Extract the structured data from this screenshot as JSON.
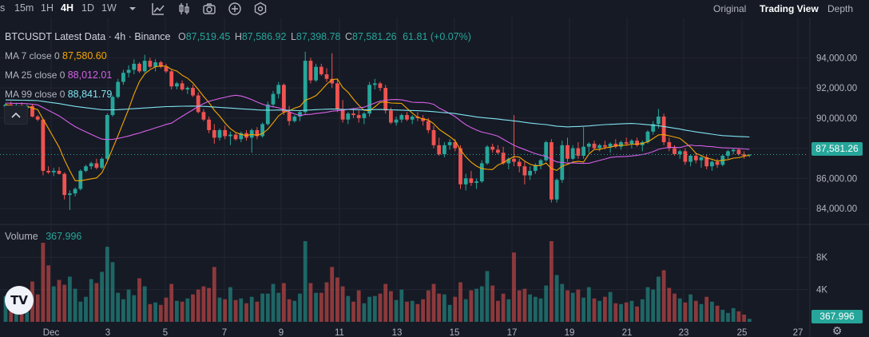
{
  "toolbar": {
    "partial_label": "s",
    "intervals": [
      {
        "label": "15m",
        "active": false
      },
      {
        "label": "1H",
        "active": false
      },
      {
        "label": "4H",
        "active": true
      },
      {
        "label": "1D",
        "active": false
      },
      {
        "label": "1W",
        "active": false
      }
    ],
    "views": [
      {
        "label": "Original",
        "active": false
      },
      {
        "label": "Trading View",
        "active": true
      },
      {
        "label": "Depth",
        "active": false
      }
    ],
    "icons": [
      "chevron-down-icon",
      "indicator-chart-icon",
      "candle-style-icon",
      "camera-icon",
      "add-circle-icon",
      "settings-hex-icon"
    ]
  },
  "legend": {
    "symbol_line": "BTCUSDT Latest Data · 4h · Binance",
    "o_label": "O",
    "o_value": "87,519.45",
    "h_label": "H",
    "h_value": "87,586.92",
    "l_label": "L",
    "l_value": "87,398.78",
    "c_label": "C",
    "c_value": "87,581.26",
    "change": "61.81 (+0.07%)"
  },
  "ma": [
    {
      "label": "MA 7 close 0",
      "value": "87,580.60",
      "color": "#f7a600"
    },
    {
      "label": "MA 25 close 0",
      "value": "88,012.01",
      "color": "#d660e6"
    },
    {
      "label": "MA 99 close 0",
      "value": "88,841.79",
      "color": "#7fe3ef"
    }
  ],
  "volume": {
    "label": "Volume",
    "value": "367.996"
  },
  "price_axis": {
    "labels": [
      "94,000.00",
      "92,000.00",
      "90,000.00",
      "88,000.00",
      "86,000.00",
      "84,000.00"
    ],
    "current_price": "87,581.26",
    "current_volume": "367.996",
    "volume_labels": [
      "8K",
      "4K"
    ]
  },
  "time_axis": [
    "Dec",
    "3",
    "5",
    "7",
    "9",
    "11",
    "13",
    "15",
    "17",
    "19",
    "21",
    "23",
    "25",
    "27"
  ],
  "colors": {
    "up": "#26a69a",
    "down": "#ef5350",
    "background": "#161a25",
    "grid": "#232632"
  },
  "collapse_icon": "chevron-up-icon",
  "logo": "TV",
  "chart_data": {
    "type": "candlestick",
    "symbol": "BTCUSDT",
    "interval": "4h",
    "price_range": [
      83000,
      95500
    ],
    "volume_range": [
      0,
      10000
    ],
    "candles": [
      [
        90750,
        91000,
        90550,
        90900,
        3200
      ],
      [
        90900,
        91100,
        90550,
        90700,
        2500
      ],
      [
        90700,
        90950,
        90450,
        90850,
        2000
      ],
      [
        90850,
        91050,
        90700,
        90650,
        2200
      ],
      [
        90650,
        90900,
        90400,
        90800,
        3500
      ],
      [
        90800,
        90950,
        90050,
        90100,
        5000
      ],
      [
        90100,
        90200,
        89800,
        89900,
        3400
      ],
      [
        89900,
        89950,
        86200,
        86500,
        9800
      ],
      [
        86500,
        86800,
        86300,
        86400,
        7000
      ],
      [
        86400,
        86700,
        86150,
        86500,
        4400
      ],
      [
        86500,
        86750,
        86250,
        86300,
        5200
      ],
      [
        86300,
        86400,
        84600,
        84900,
        4600
      ],
      [
        84900,
        85200,
        83900,
        85000,
        5600
      ],
      [
        85000,
        85400,
        84800,
        85300,
        4100
      ],
      [
        85300,
        86600,
        85200,
        86500,
        2500
      ],
      [
        86500,
        86900,
        86400,
        86800,
        3100
      ],
      [
        86800,
        87100,
        86600,
        87000,
        5300
      ],
      [
        87000,
        87300,
        86600,
        86700,
        4800
      ],
      [
        86700,
        87400,
        86600,
        87300,
        6200
      ],
      [
        87300,
        90300,
        87200,
        90200,
        9300
      ],
      [
        90200,
        91500,
        90100,
        91400,
        7400
      ],
      [
        91400,
        92600,
        91300,
        92400,
        3600
      ],
      [
        92400,
        93200,
        92200,
        93000,
        2800
      ],
      [
        93000,
        93500,
        92700,
        93200,
        4000
      ],
      [
        93200,
        93900,
        92900,
        93600,
        3300
      ],
      [
        93600,
        93700,
        93000,
        93100,
        5400
      ],
      [
        93100,
        94200,
        93000,
        93800,
        4400
      ],
      [
        93800,
        94000,
        93300,
        93400,
        2200
      ],
      [
        93400,
        93900,
        93100,
        93700,
        2400
      ],
      [
        93700,
        93800,
        93300,
        93400,
        2100
      ],
      [
        93400,
        93600,
        93000,
        93100,
        3000
      ],
      [
        93100,
        93200,
        91900,
        92100,
        4700
      ],
      [
        92100,
        92400,
        91900,
        92300,
        2600
      ],
      [
        92300,
        92500,
        91800,
        91900,
        2500
      ],
      [
        91900,
        92100,
        91600,
        92000,
        2900
      ],
      [
        92000,
        92200,
        91400,
        91500,
        3400
      ],
      [
        91500,
        91700,
        90300,
        90400,
        4000
      ],
      [
        90400,
        90600,
        89800,
        89900,
        4400
      ],
      [
        89900,
        90100,
        89000,
        89200,
        4200
      ],
      [
        89200,
        89600,
        88300,
        88700,
        6800
      ],
      [
        88700,
        89300,
        88500,
        89200,
        3000
      ],
      [
        89200,
        89500,
        88600,
        88800,
        2800
      ],
      [
        88800,
        89100,
        88200,
        88900,
        4300
      ],
      [
        88900,
        89000,
        88500,
        88600,
        2700
      ],
      [
        88600,
        89100,
        88400,
        89000,
        2900
      ],
      [
        89000,
        89200,
        88500,
        88700,
        2300
      ],
      [
        88700,
        89300,
        87700,
        89200,
        3100
      ],
      [
        89200,
        89400,
        88600,
        88800,
        2500
      ],
      [
        88800,
        89700,
        88700,
        89600,
        3500
      ],
      [
        89600,
        91100,
        89500,
        90900,
        3500
      ],
      [
        90900,
        91800,
        90700,
        91600,
        4700
      ],
      [
        91600,
        92400,
        91300,
        92200,
        3600
      ],
      [
        92200,
        92300,
        90200,
        90400,
        4800
      ],
      [
        90400,
        90800,
        89500,
        89800,
        2800
      ],
      [
        89800,
        90200,
        89700,
        90100,
        2600
      ],
      [
        90100,
        90500,
        89800,
        90400,
        3500
      ],
      [
        90400,
        94400,
        90200,
        93800,
        10000
      ],
      [
        93800,
        94000,
        92300,
        92500,
        4800
      ],
      [
        92500,
        93600,
        92400,
        93400,
        3600
      ],
      [
        93400,
        93600,
        92800,
        92900,
        3600
      ],
      [
        92900,
        93300,
        92400,
        92600,
        4900
      ],
      [
        92600,
        94300,
        92000,
        92300,
        6800
      ],
      [
        92300,
        92600,
        90400,
        90600,
        5500
      ],
      [
        90600,
        91200,
        89700,
        89900,
        4400
      ],
      [
        89900,
        90400,
        89600,
        90300,
        3200
      ],
      [
        90300,
        90600,
        90000,
        90200,
        2500
      ],
      [
        90200,
        90500,
        89700,
        90000,
        3900
      ],
      [
        90000,
        90400,
        89600,
        90300,
        2300
      ],
      [
        90300,
        92400,
        90100,
        92200,
        3100
      ],
      [
        92200,
        92600,
        91900,
        92300,
        3200
      ],
      [
        92300,
        92400,
        91800,
        92000,
        3500
      ],
      [
        92000,
        92200,
        90300,
        90500,
        4700
      ],
      [
        90500,
        90700,
        89600,
        89700,
        3800
      ],
      [
        89700,
        90100,
        89500,
        89900,
        2700
      ],
      [
        89900,
        90300,
        89700,
        90200,
        4000
      ],
      [
        90200,
        90400,
        89800,
        89900,
        2500
      ],
      [
        89900,
        90200,
        89600,
        90100,
        2600
      ],
      [
        90100,
        90400,
        89800,
        90000,
        2200
      ],
      [
        90000,
        90200,
        89500,
        89800,
        2800
      ],
      [
        89800,
        90000,
        89000,
        89200,
        3900
      ],
      [
        89200,
        89500,
        88000,
        88200,
        4700
      ],
      [
        88200,
        88700,
        87500,
        87600,
        3500
      ],
      [
        87600,
        88400,
        87400,
        88200,
        3400
      ],
      [
        88200,
        88600,
        87900,
        88400,
        2100
      ],
      [
        88400,
        88600,
        87800,
        88000,
        3100
      ],
      [
        88000,
        88200,
        85300,
        85600,
        4900
      ],
      [
        85600,
        86300,
        85200,
        86000,
        2800
      ],
      [
        86000,
        86500,
        85500,
        85700,
        3900
      ],
      [
        85700,
        86000,
        85300,
        85800,
        4100
      ],
      [
        85800,
        87200,
        85700,
        87000,
        4400
      ],
      [
        87000,
        88200,
        86900,
        88100,
        6300
      ],
      [
        88100,
        88300,
        87700,
        87900,
        4500
      ],
      [
        87900,
        88200,
        87600,
        87700,
        2600
      ],
      [
        87700,
        88100,
        86900,
        87000,
        3500
      ],
      [
        87000,
        87400,
        86600,
        87300,
        2800
      ],
      [
        87300,
        90200,
        86800,
        87100,
        8600
      ],
      [
        87100,
        87300,
        86400,
        86800,
        3900
      ],
      [
        86800,
        87100,
        85600,
        86200,
        4100
      ],
      [
        86200,
        86800,
        85900,
        86500,
        3400
      ],
      [
        86500,
        87000,
        86300,
        86900,
        3100
      ],
      [
        86900,
        87300,
        86600,
        87200,
        2900
      ],
      [
        87200,
        88500,
        87100,
        88400,
        4500
      ],
      [
        88400,
        88600,
        84400,
        84600,
        10000
      ],
      [
        84600,
        86000,
        84400,
        85900,
        5800
      ],
      [
        85900,
        88500,
        85700,
        88200,
        4700
      ],
      [
        88200,
        88700,
        87100,
        87300,
        3900
      ],
      [
        87300,
        88200,
        87200,
        88000,
        3600
      ],
      [
        88000,
        88400,
        87300,
        87500,
        4000
      ],
      [
        87500,
        89400,
        87300,
        88100,
        3000
      ],
      [
        88100,
        88400,
        87700,
        88300,
        4300
      ],
      [
        88300,
        88500,
        87900,
        88000,
        2900
      ],
      [
        88000,
        88300,
        87800,
        88200,
        2600
      ],
      [
        88200,
        88500,
        87900,
        88100,
        3100
      ],
      [
        88100,
        88400,
        87700,
        88300,
        3700
      ],
      [
        88300,
        88600,
        88000,
        88100,
        2300
      ],
      [
        88100,
        88500,
        87900,
        88400,
        2200
      ],
      [
        88400,
        88700,
        88200,
        88300,
        2400
      ],
      [
        88300,
        88600,
        88000,
        88500,
        2600
      ],
      [
        88500,
        88700,
        88100,
        88200,
        1900
      ],
      [
        88200,
        88500,
        87800,
        88400,
        2800
      ],
      [
        88400,
        89200,
        88300,
        89100,
        4300
      ],
      [
        89100,
        89800,
        88900,
        89600,
        4000
      ],
      [
        89600,
        90600,
        89300,
        90100,
        5600
      ],
      [
        90100,
        90300,
        88200,
        88400,
        6400
      ],
      [
        88400,
        88700,
        87800,
        88000,
        4200
      ],
      [
        88000,
        88200,
        87500,
        87600,
        3500
      ],
      [
        87600,
        87900,
        87300,
        87800,
        2900
      ],
      [
        87800,
        88000,
        86900,
        87100,
        2400
      ],
      [
        87100,
        87600,
        86800,
        87500,
        3400
      ],
      [
        87500,
        87700,
        87000,
        87200,
        2600
      ],
      [
        87200,
        87500,
        86700,
        87400,
        2200
      ],
      [
        87400,
        87600,
        86600,
        86800,
        3100
      ],
      [
        86800,
        87200,
        86500,
        87100,
        2500
      ],
      [
        87100,
        87300,
        86700,
        86900,
        2000
      ],
      [
        86900,
        87600,
        86800,
        87500,
        1500
      ],
      [
        87500,
        87900,
        87300,
        87800,
        1100
      ],
      [
        87800,
        88000,
        87600,
        87900,
        1700
      ],
      [
        87900,
        88000,
        87500,
        87600,
        1300
      ],
      [
        87600,
        87800,
        87300,
        87500,
        900
      ],
      [
        87519.45,
        87586.92,
        87398.78,
        87581.26,
        368
      ]
    ]
  }
}
